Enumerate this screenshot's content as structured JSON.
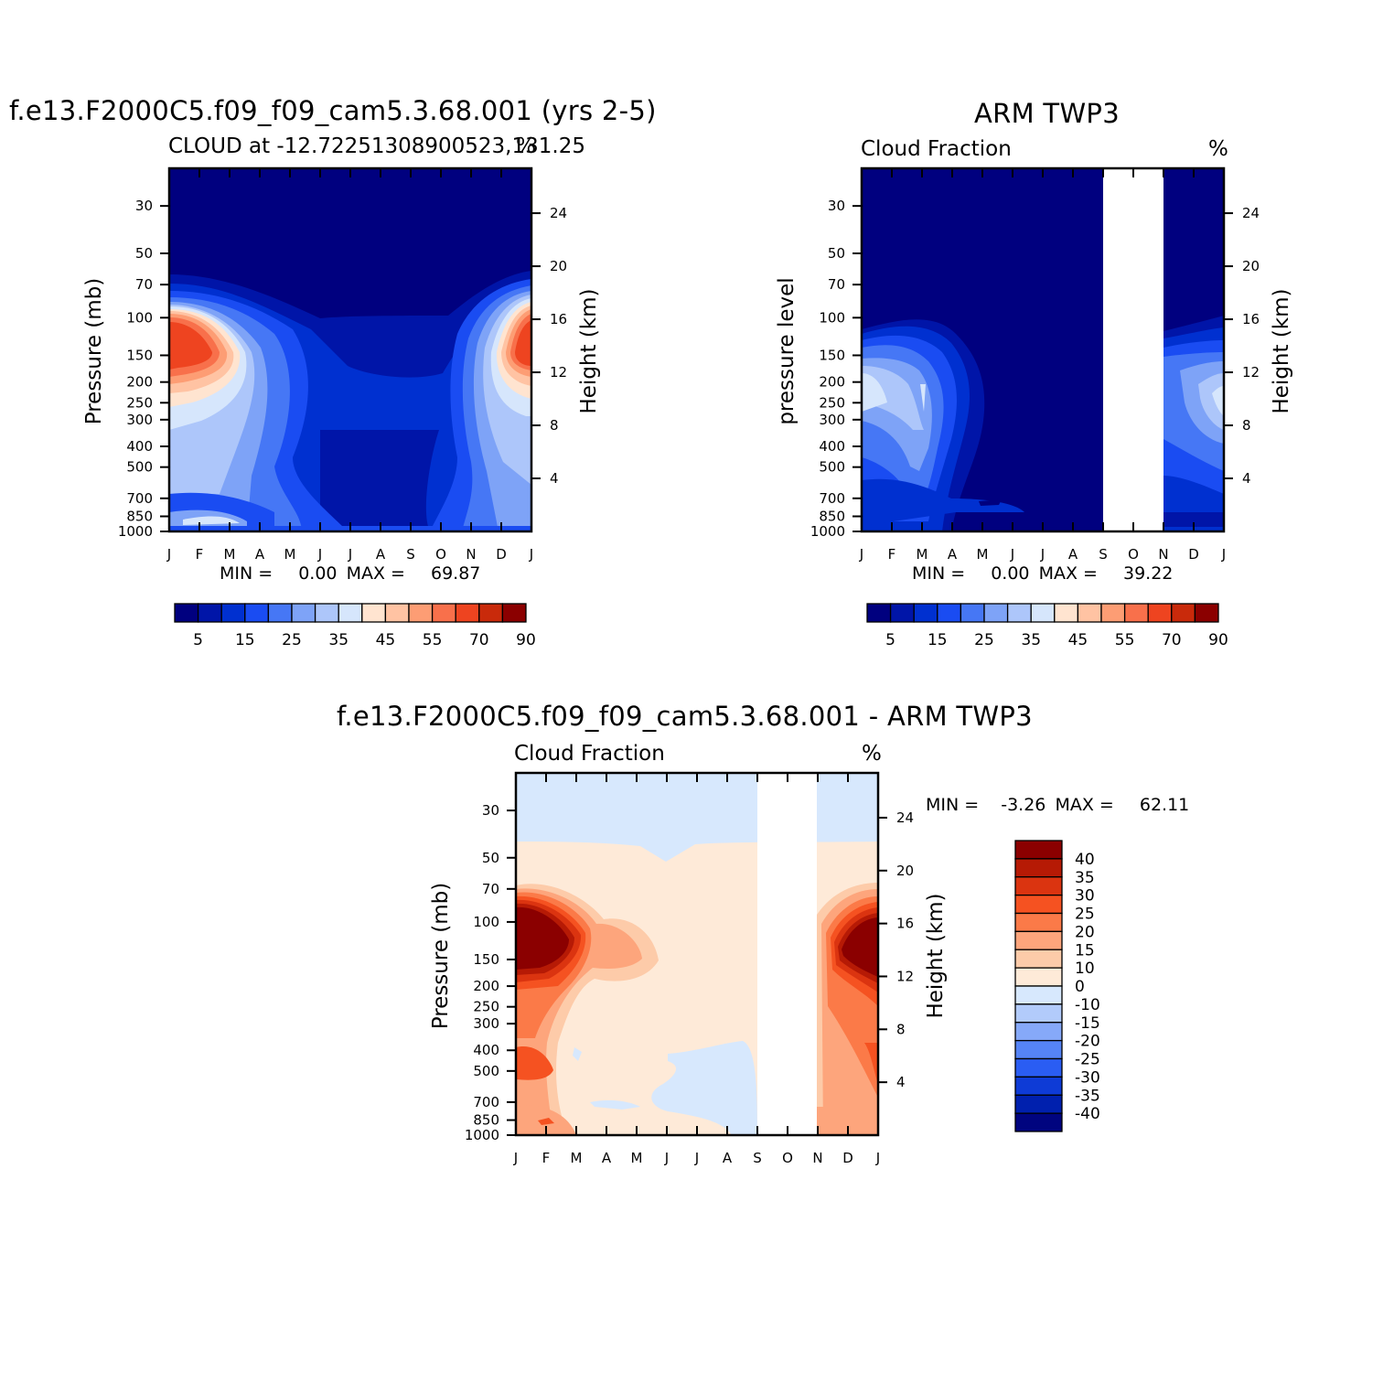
{
  "panel_model": {
    "title": "f.e13.F2000C5.f09_f09_cam5.3.68.001 (yrs 2-5)",
    "subtitle_left": "CLOUD at -12.72251308900523,131.25",
    "subtitle_right": "%",
    "ylabel": "Pressure (mb)",
    "ylabel_right": "Height (km)",
    "min_label": "MIN =",
    "min_value": "0.00",
    "max_label": "MAX =",
    "max_value": "69.87"
  },
  "panel_obs": {
    "title": "ARM TWP3",
    "subtitle_left": "Cloud Fraction",
    "subtitle_right": "%",
    "ylabel": "pressure level",
    "ylabel_right": "Height (km)",
    "min_label": "MIN =",
    "min_value": "0.00",
    "max_label": "MAX =",
    "max_value": "39.22"
  },
  "panel_diff": {
    "title": "f.e13.F2000C5.f09_f09_cam5.3.68.001 - ARM TWP3",
    "subtitle_left": "Cloud Fraction",
    "subtitle_right": "%",
    "ylabel": "Pressure (mb)",
    "ylabel_right": "Height (km)",
    "min_label": "MIN =",
    "min_value": "-3.26",
    "max_label": "MAX =",
    "max_value": "62.11"
  },
  "chart_data": [
    {
      "type": "heatmap",
      "name": "model annual cycle cloud fraction",
      "x_ticks": [
        "J",
        "F",
        "M",
        "A",
        "M",
        "J",
        "J",
        "A",
        "S",
        "O",
        "N",
        "D",
        "J"
      ],
      "y_ticks_pressure": [
        30,
        50,
        70,
        100,
        150,
        200,
        250,
        300,
        400,
        500,
        700,
        850,
        1000
      ],
      "y_ticks_height_km": [
        24,
        20,
        16,
        12,
        8,
        4
      ],
      "ylim_pressure": [
        1000,
        20
      ],
      "colorbar_levels": [
        5,
        10,
        15,
        20,
        25,
        30,
        35,
        40,
        45,
        50,
        55,
        60,
        70,
        80,
        90
      ],
      "colorbar_labels": [
        "5",
        "15",
        "25",
        "35",
        "45",
        "55",
        "70",
        "90"
      ],
      "zmin": 0.0,
      "zmax": 69.87
    },
    {
      "type": "heatmap",
      "name": "ARM TWP3 observed cloud fraction",
      "x_ticks": [
        "J",
        "F",
        "M",
        "A",
        "M",
        "J",
        "J",
        "A",
        "S",
        "O",
        "N",
        "D",
        "J"
      ],
      "y_ticks_pressure": [
        30,
        50,
        70,
        100,
        150,
        200,
        250,
        300,
        400,
        500,
        700,
        850,
        1000
      ],
      "y_ticks_height_km": [
        24,
        20,
        16,
        12,
        8,
        4
      ],
      "missing_months": [
        "S",
        "O"
      ],
      "colorbar_levels": [
        5,
        10,
        15,
        20,
        25,
        30,
        35,
        40,
        45,
        50,
        55,
        60,
        70,
        80,
        90
      ],
      "colorbar_labels": [
        "5",
        "15",
        "25",
        "35",
        "45",
        "55",
        "70",
        "90"
      ],
      "zmin": 0.0,
      "zmax": 39.22
    },
    {
      "type": "heatmap",
      "name": "model minus observation",
      "x_ticks": [
        "J",
        "F",
        "M",
        "A",
        "M",
        "J",
        "J",
        "A",
        "S",
        "O",
        "N",
        "D",
        "J"
      ],
      "y_ticks_pressure": [
        30,
        50,
        70,
        100,
        150,
        200,
        250,
        300,
        400,
        500,
        700,
        850,
        1000
      ],
      "y_ticks_height_km": [
        24,
        20,
        16,
        12,
        8,
        4
      ],
      "missing_months": [
        "S",
        "O"
      ],
      "colorbar_labels": [
        "40",
        "35",
        "30",
        "25",
        "20",
        "15",
        "10",
        "0",
        "-10",
        "-15",
        "-20",
        "-25",
        "-30",
        "-35",
        "-40"
      ],
      "zmin": -3.26,
      "zmax": 62.11
    }
  ],
  "colors": {
    "seq": [
      "#00007f",
      "#0015a8",
      "#0030d0",
      "#1a4cf2",
      "#4677f5",
      "#7ea3f7",
      "#adc6fa",
      "#d6e6fc",
      "#ffe4d0",
      "#ffc3a3",
      "#fd9d74",
      "#f8704b",
      "#ee4420",
      "#c92a0b",
      "#8b0000"
    ],
    "div": [
      "#8b0000",
      "#b61a05",
      "#db3410",
      "#f55221",
      "#fb7a48",
      "#fda57c",
      "#fdcba9",
      "#feead8",
      "#d7e8fd",
      "#b2cbfb",
      "#86a9f9",
      "#5584f6",
      "#2a5df3",
      "#0e3bd6",
      "#0020ae",
      "#00047f"
    ]
  }
}
